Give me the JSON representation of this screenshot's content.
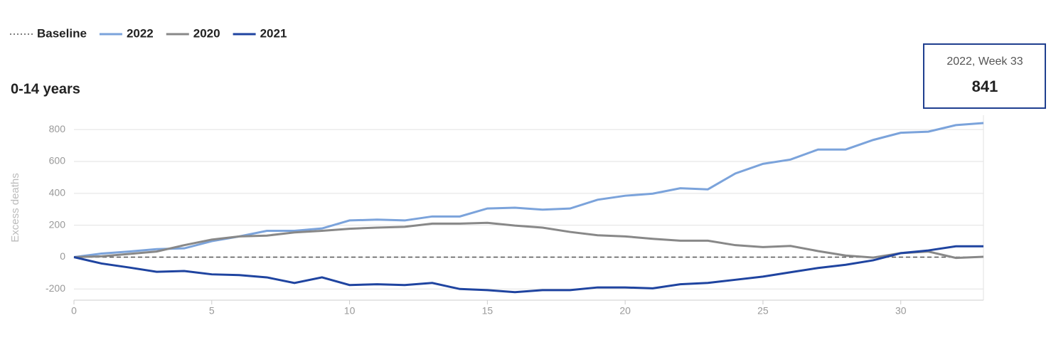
{
  "chart_data": {
    "type": "line",
    "title": "0-14 years",
    "ylabel": "Excess deaths",
    "x": [
      0,
      1,
      2,
      3,
      4,
      5,
      6,
      7,
      8,
      9,
      10,
      11,
      12,
      13,
      14,
      15,
      16,
      17,
      18,
      19,
      20,
      21,
      22,
      23,
      24,
      25,
      26,
      27,
      28,
      29,
      30,
      31,
      32,
      33
    ],
    "xlim": [
      0,
      33
    ],
    "xticks": [
      0,
      5,
      10,
      15,
      20,
      25,
      30
    ],
    "ylim": [
      -270,
      890
    ],
    "yticks": [
      -200,
      0,
      200,
      400,
      600,
      800
    ],
    "grid": true,
    "series": [
      {
        "name": "Baseline",
        "color": "#555555",
        "dash": true,
        "values": [
          0,
          0,
          0,
          0,
          0,
          0,
          0,
          0,
          0,
          0,
          0,
          0,
          0,
          0,
          0,
          0,
          0,
          0,
          0,
          0,
          0,
          0,
          0,
          0,
          0,
          0,
          0,
          0,
          0,
          0,
          0,
          0,
          0,
          0
        ]
      },
      {
        "name": "2022",
        "color": "#7ba3db",
        "values": [
          0,
          22,
          35,
          50,
          55,
          100,
          130,
          165,
          165,
          180,
          230,
          235,
          230,
          255,
          255,
          305,
          310,
          298,
          305,
          360,
          385,
          398,
          432,
          425,
          525,
          585,
          612,
          675,
          675,
          735,
          780,
          787,
          828,
          841
        ]
      },
      {
        "name": "2020",
        "color": "#888888",
        "values": [
          0,
          5,
          20,
          35,
          75,
          110,
          130,
          135,
          155,
          165,
          178,
          185,
          190,
          210,
          210,
          215,
          198,
          185,
          158,
          137,
          130,
          115,
          103,
          103,
          75,
          63,
          70,
          38,
          10,
          -3,
          25,
          35,
          -5,
          2
        ]
      },
      {
        "name": "2021",
        "color": "#1f44a0",
        "values": [
          0,
          -40,
          -65,
          -92,
          -87,
          -108,
          -113,
          -127,
          -162,
          -127,
          -175,
          -170,
          -175,
          -162,
          -200,
          -207,
          -220,
          -207,
          -207,
          -190,
          -190,
          -196,
          -170,
          -162,
          -142,
          -122,
          -95,
          -68,
          -48,
          -20,
          25,
          42,
          68,
          68
        ]
      }
    ],
    "tooltip": {
      "title": "2022, Week 33"
    }
  }
}
